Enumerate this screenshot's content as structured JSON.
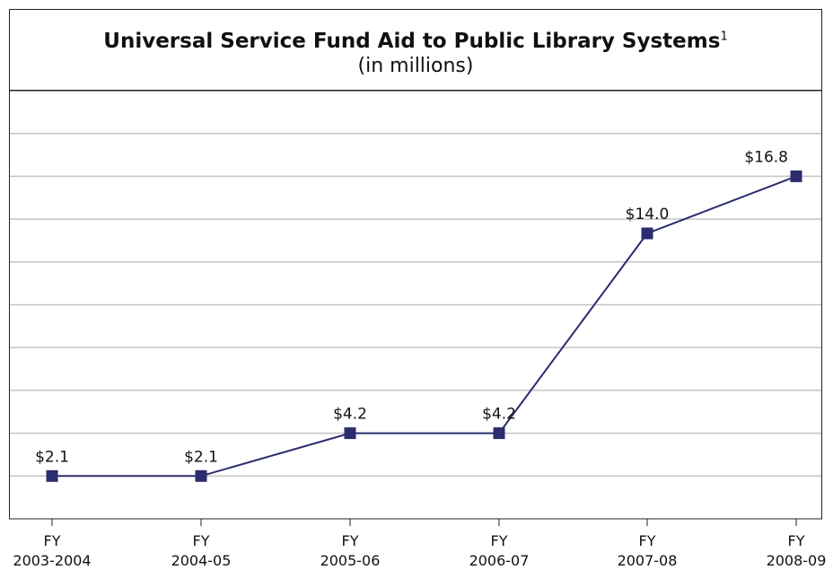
{
  "chart_data": {
    "type": "line",
    "title": "Universal Service Fund Aid to Public Library Systems",
    "title_footnote": "1",
    "subtitle": "(in millions)",
    "categories": [
      [
        "FY",
        "2003-2004"
      ],
      [
        "FY",
        "2004-05"
      ],
      [
        "FY",
        "2005-06"
      ],
      [
        "FY",
        "2006-07"
      ],
      [
        "FY",
        "2007-08"
      ],
      [
        "FY",
        "2008-09"
      ]
    ],
    "values": [
      2.1,
      2.1,
      4.2,
      4.2,
      14.0,
      16.8
    ],
    "data_labels": [
      "$2.1",
      "$2.1",
      "$4.2",
      "$4.2",
      "$14.0",
      "$16.8"
    ],
    "ylim": [
      0,
      21
    ],
    "y_gridline_step": 2.1,
    "grid": true,
    "line_color": "#2b2d6e",
    "marker": "square",
    "gridline_color": "#c4c4c4"
  }
}
